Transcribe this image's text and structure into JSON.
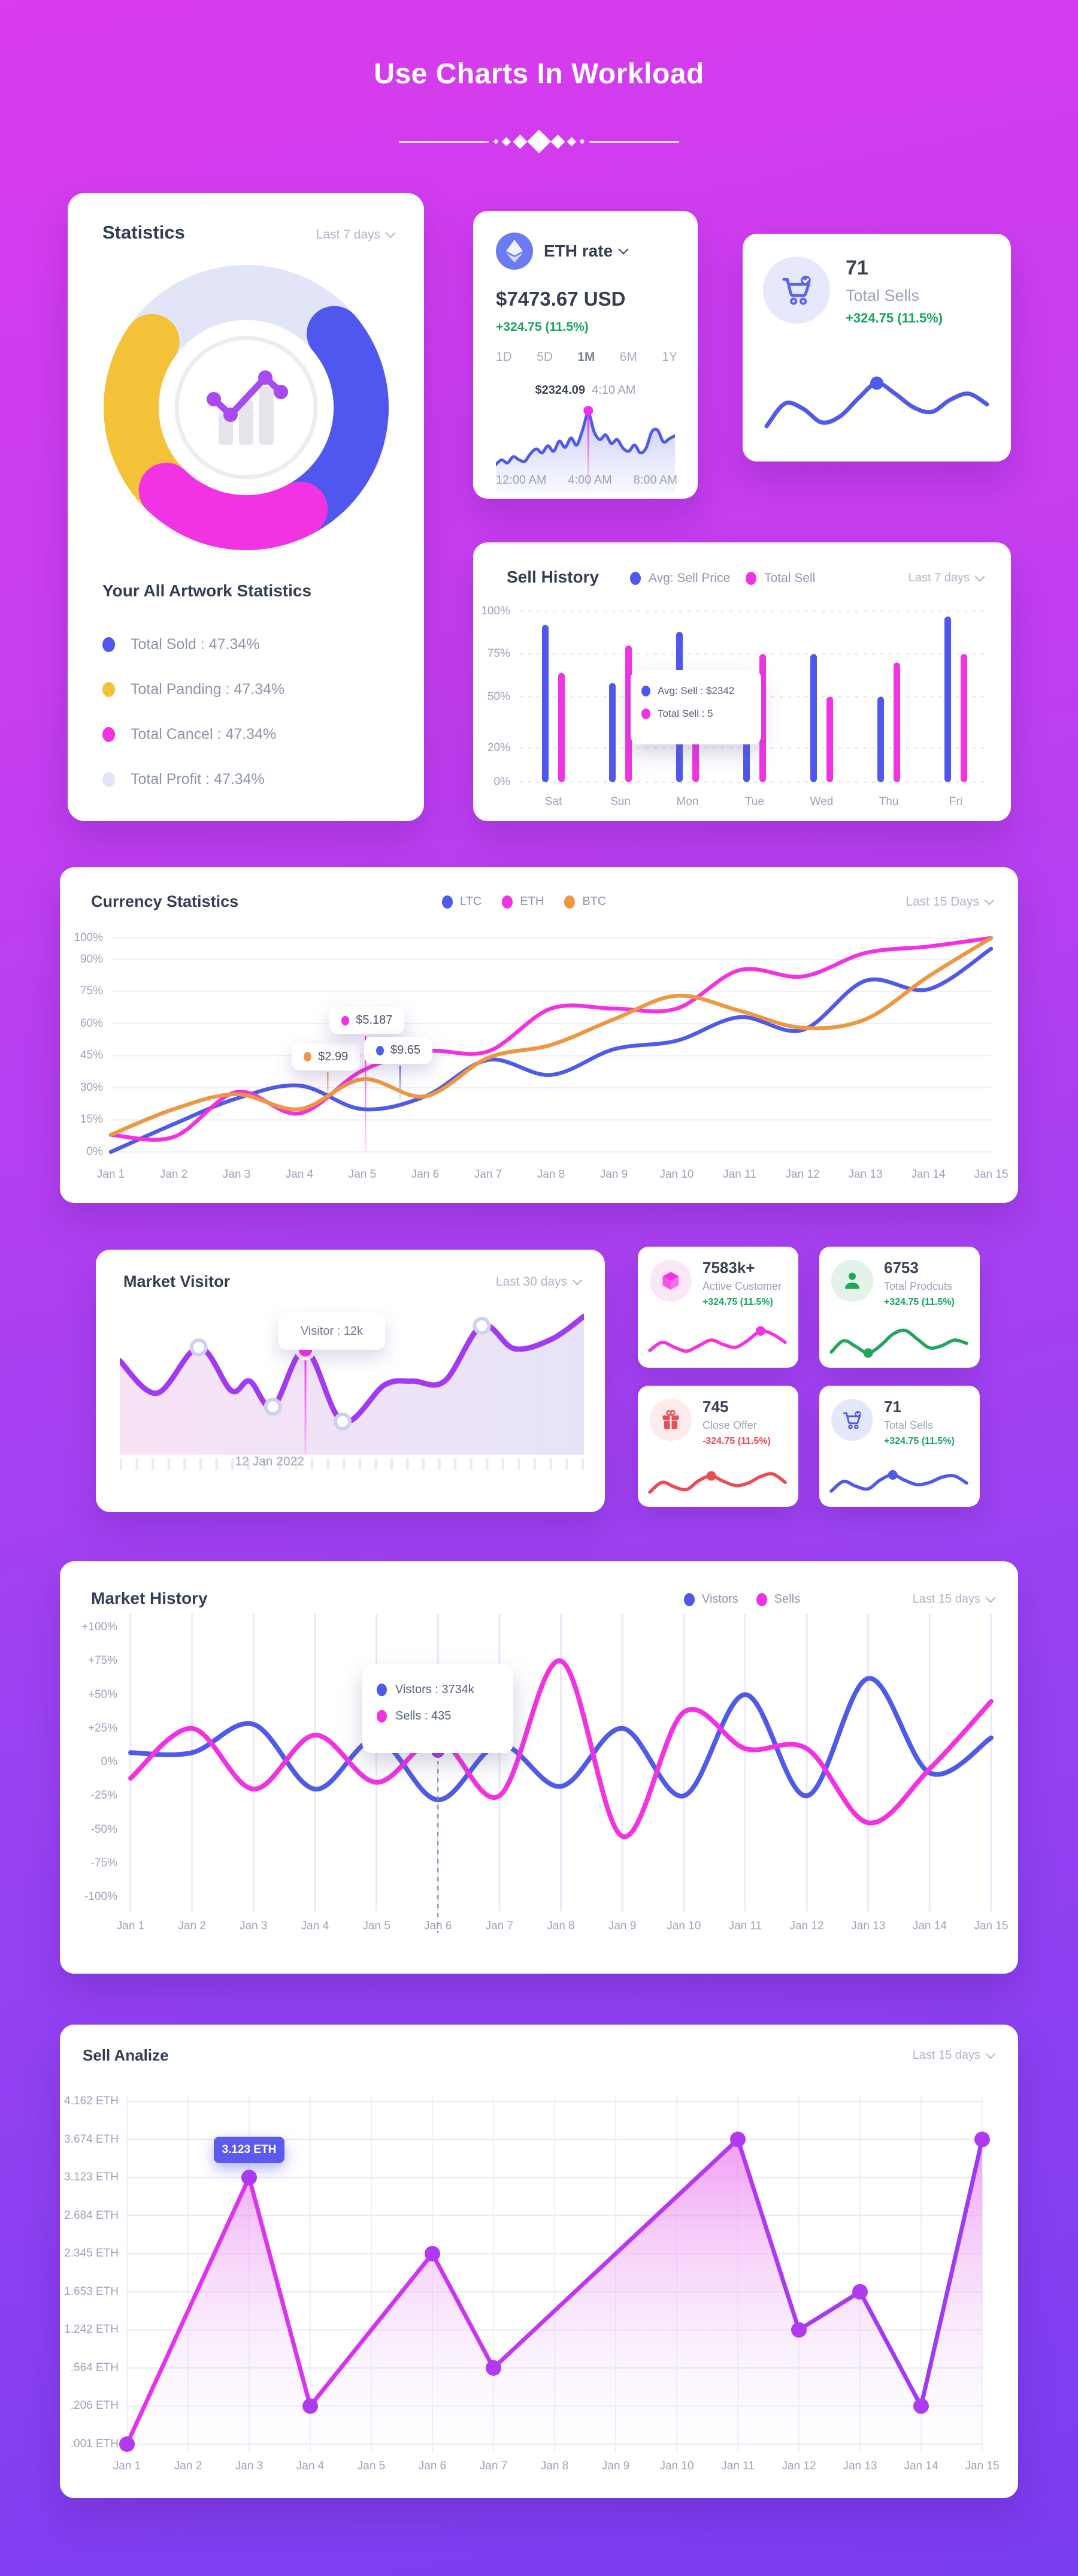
{
  "page": {
    "title": "Use Charts In Workload"
  },
  "statistics": {
    "title": "Statistics",
    "period": "Last 7 days",
    "heading": "Your All Artwork Statistics",
    "donut_segments": [
      {
        "name": "Total Profit",
        "color": "#e2e4f8",
        "start": -62,
        "end": 48
      },
      {
        "name": "Total Sold",
        "color": "#5057ee",
        "start": 50,
        "end": 152
      },
      {
        "name": "Total Panding",
        "color": "#f4c238",
        "start": 223,
        "end": 305
      },
      {
        "name": "Total Cancel",
        "color": "#f233e4",
        "start": 152,
        "end": 224
      }
    ],
    "legend": [
      {
        "label": "Total Sold",
        "value": "47.34%",
        "color": "#5057ee"
      },
      {
        "label": "Total Panding",
        "value": "47.34%",
        "color": "#f4c238"
      },
      {
        "label": "Total Cancel",
        "value": "47.34%",
        "color": "#f233e4"
      },
      {
        "label": "Total Profit",
        "value": "47.34%",
        "color": "#e2e4f8"
      }
    ]
  },
  "eth_rate": {
    "label": "ETH rate",
    "price": "$7473.67 USD",
    "change": "+324.75 (11.5%)",
    "tabs": [
      "1D",
      "5D",
      "1M",
      "6M",
      "1Y"
    ],
    "active_tab": "1M",
    "tooltip_price": "$2324.09",
    "tooltip_time": "4:10 AM",
    "x_labels": [
      "12:00 AM",
      "4:00 AM",
      "8:00 AM"
    ],
    "values": [
      30,
      36,
      32,
      40,
      36,
      34,
      44,
      50,
      45,
      54,
      47,
      60,
      52,
      64,
      55,
      74,
      96,
      72,
      62,
      68,
      57,
      62,
      51,
      47,
      55,
      45,
      51,
      72,
      74,
      59,
      63,
      67
    ],
    "peak_index": 16,
    "line_color": "#4f5ae8",
    "dot_color": "#f62ef0"
  },
  "total_sells_card": {
    "value": "71",
    "label": "Total Sells",
    "change": "+324.75 (11.5%)",
    "spark": [
      15,
      45,
      38,
      20,
      28,
      52,
      72,
      58,
      40,
      34,
      50,
      58,
      44
    ],
    "dot_index": 6,
    "color": "#4f5ae8"
  },
  "sell_history": {
    "title": "Sell History",
    "period": "Last 7 days",
    "legend": [
      {
        "label": "Avg: Sell Price",
        "color": "#5057ee"
      },
      {
        "label": "Total Sell",
        "color": "#f233e4"
      }
    ],
    "y_ticks": [
      {
        "label": "100%",
        "value": 100
      },
      {
        "label": "75%",
        "value": 75
      },
      {
        "label": "50%",
        "value": 50
      },
      {
        "label": "20%",
        "value": 20
      },
      {
        "label": "0%",
        "value": 0
      }
    ],
    "categories": [
      "Sat",
      "Sun",
      "Mon",
      "Tue",
      "Wed",
      "Thu",
      "Fri"
    ],
    "series": [
      {
        "name": "Avg: Sell Price",
        "color": "#5057ee",
        "values": [
          92,
          58,
          88,
          38,
          75,
          50,
          97
        ]
      },
      {
        "name": "Total Sell",
        "color": "#f233e4",
        "values": [
          64,
          80,
          53,
          75,
          50,
          70,
          75
        ]
      }
    ],
    "tooltip": [
      {
        "label": "Avg: Sell : $2342",
        "color": "#5057ee"
      },
      {
        "label": "Total Sell : 5",
        "color": "#f233e4"
      }
    ]
  },
  "currency_statistics": {
    "title": "Currency  Statistics",
    "period": "Last 15 Days",
    "legend": [
      {
        "label": "LTC",
        "color": "#4f5ae8"
      },
      {
        "label": "ETH",
        "color": "#f231e2"
      },
      {
        "label": "BTC",
        "color": "#ee9743"
      }
    ],
    "y_ticks": [
      {
        "label": "100%",
        "value": 100
      },
      {
        "label": "90%",
        "value": 90
      },
      {
        "label": "75%",
        "value": 75
      },
      {
        "label": "60%",
        "value": 60
      },
      {
        "label": "45%",
        "value": 45
      },
      {
        "label": "30%",
        "value": 30
      },
      {
        "label": "15%",
        "value": 15
      },
      {
        "label": "0%",
        "value": 0
      }
    ],
    "x_labels": [
      "Jan 1",
      "Jan 2",
      "Jan 3",
      "Jan 4",
      "Jan 5",
      "Jan 6",
      "Jan 7",
      "Jan 8",
      "Jan 9",
      "Jan 10",
      "Jan 11",
      "Jan 12",
      "Jan 13",
      "Jan 14",
      "Jan 15"
    ],
    "series": [
      {
        "name": "LTC",
        "color": "#4f5ae8",
        "values": [
          0,
          13,
          25,
          31,
          20,
          26,
          43,
          36,
          48,
          52,
          63,
          57,
          80,
          76,
          95
        ]
      },
      {
        "name": "ETH",
        "color": "#f231e2",
        "values": [
          8,
          7,
          28,
          18,
          38,
          47,
          47,
          67,
          67,
          67,
          85,
          82,
          93,
          96,
          100
        ]
      },
      {
        "name": "BTC",
        "color": "#ee9743",
        "values": [
          8,
          20,
          27,
          20,
          34,
          26,
          44,
          50,
          62,
          73,
          66,
          58,
          62,
          82,
          100
        ]
      }
    ],
    "tooltips": [
      {
        "label": "$2.99",
        "color": "#ee9743",
        "day": 4.45,
        "value": 44,
        "line_to": 22
      },
      {
        "label": "$5.187",
        "color": "#f231e2",
        "day": 5.05,
        "value": 61,
        "line_to": 0
      },
      {
        "label": "$9.65",
        "color": "#4f5ae8",
        "day": 5.6,
        "value": 47,
        "line_to": 24
      }
    ]
  },
  "market_visitor": {
    "title": "Market Visitor",
    "period": "Last 30 days",
    "tooltip": "Visitor : 12k",
    "date_label": "12 Jan 2022",
    "line_color": "#a03bf2",
    "points": [
      [
        0,
        62
      ],
      [
        8,
        38
      ],
      [
        17,
        72
      ],
      [
        24,
        40
      ],
      [
        28,
        47
      ],
      [
        33,
        28
      ],
      [
        40,
        70
      ],
      [
        48,
        17
      ],
      [
        57,
        44
      ],
      [
        63,
        47
      ],
      [
        70,
        47
      ],
      [
        78,
        88
      ],
      [
        85,
        71
      ],
      [
        93,
        78
      ],
      [
        100,
        95
      ]
    ],
    "hollow_markers": [
      2,
      5,
      7,
      11
    ],
    "dot_index": 6
  },
  "small_cards": [
    {
      "value": "7583k+",
      "label": "Active Customer",
      "change": "+324.75 (11.5%)",
      "change_color": "#17a45f",
      "icon": "cube-icon",
      "accent": "#f233e4",
      "icon_bg": "#fce7f8",
      "spark": [
        20,
        45,
        30,
        18,
        35,
        52,
        38,
        30,
        52,
        80,
        70,
        45
      ],
      "dot_index": 9
    },
    {
      "value": "6753",
      "label": "Total Prodcuts",
      "change": "+324.75 (11.5%)",
      "change_color": "#17a45f",
      "icon": "person-icon",
      "accent": "#22a55c",
      "icon_bg": "#e2f3e8",
      "spark": [
        15,
        50,
        32,
        12,
        35,
        70,
        82,
        55,
        28,
        35,
        52,
        42
      ],
      "dot_index": 3
    },
    {
      "value": "745",
      "label": "Close Offer",
      "change": "-324.75 (11.5%)",
      "change_color": "#ea4d52",
      "icon": "gift-icon",
      "accent": "#ea4d52",
      "icon_bg": "#fdeaea",
      "spark": [
        12,
        42,
        28,
        20,
        48,
        62,
        45,
        32,
        40,
        60,
        68,
        42
      ],
      "dot_index": 5
    },
    {
      "value": "71",
      "label": "Total Sells",
      "change": "+324.75 (11.5%)",
      "change_color": "#17a45f",
      "icon": "cart-icon",
      "accent": "#4f5ae8",
      "icon_bg": "#e5e7fb",
      "spark": [
        15,
        45,
        30,
        22,
        50,
        65,
        48,
        35,
        42,
        58,
        62,
        40
      ],
      "dot_index": 5
    }
  ],
  "market_history": {
    "title": "Market History",
    "period": "Last 15 days",
    "legend": [
      {
        "label": "Vistors",
        "color": "#4f5ae8"
      },
      {
        "label": "Sells",
        "color": "#f231e2"
      }
    ],
    "y_ticks": [
      {
        "label": "+100%",
        "value": 100
      },
      {
        "label": "+75%",
        "value": 75
      },
      {
        "label": "+50%",
        "value": 50
      },
      {
        "label": "+25%",
        "value": 25
      },
      {
        "label": "0%",
        "value": 0
      },
      {
        "label": "-25%",
        "value": -25
      },
      {
        "label": "-50%",
        "value": -50
      },
      {
        "label": "-75%",
        "value": -75
      },
      {
        "label": "-100%",
        "value": -100
      }
    ],
    "x_labels": [
      "Jan 1",
      "Jan 2",
      "Jan 3",
      "Jan 4",
      "Jan 5",
      "Jan 6",
      "Jan 7",
      "Jan 8",
      "Jan 9",
      "Jan 10",
      "Jan 11",
      "Jan 12",
      "Jan 13",
      "Jan 14",
      "Jan 15"
    ],
    "series": [
      {
        "name": "Vistors",
        "color": "#4f5ae8",
        "values": [
          7,
          7,
          28,
          -20,
          17,
          -28,
          13,
          -18,
          25,
          -25,
          50,
          -25,
          62,
          -8,
          18
        ]
      },
      {
        "name": "Sells",
        "color": "#f231e2",
        "values": [
          -12,
          25,
          -20,
          20,
          -15,
          17,
          -25,
          75,
          -55,
          37,
          10,
          10,
          -45,
          -5,
          45
        ]
      }
    ],
    "tooltip": [
      {
        "label": "Vistors : 3734k",
        "color": "#4f5ae8"
      },
      {
        "label": "Sells : 435",
        "color": "#f231e2"
      }
    ],
    "marker": {
      "day": 6,
      "value": 8,
      "color": "#9b36ee"
    }
  },
  "sell_analyze": {
    "title": "Sell Analize",
    "period": "Last 15 days",
    "y_labels": [
      "4.162 ETH",
      "3.674 ETH",
      "3.123 ETH",
      "2.684 ETH",
      "2.345 ETH",
      "1.653 ETH",
      "1.242 ETH",
      ".564 ETH",
      ".206 ETH",
      ".001 ETH"
    ],
    "x_labels": [
      "Jan 1",
      "Jan 2",
      "Jan 3",
      "Jan 4",
      "Jan 5",
      "Jan 6",
      "Jan 7",
      "Jan 8",
      "Jan 9",
      "Jan 10",
      "Jan 11",
      "Jan 12",
      "Jan 13",
      "Jan 14",
      "Jan 15"
    ],
    "points": [
      {
        "day": 1,
        "level": 0
      },
      {
        "day": 3,
        "level": 7
      },
      {
        "day": 4,
        "level": 1
      },
      {
        "day": 6,
        "level": 5
      },
      {
        "day": 7,
        "level": 2
      },
      {
        "day": 11,
        "level": 8
      },
      {
        "day": 12,
        "level": 3
      },
      {
        "day": 13,
        "level": 4
      },
      {
        "day": 14,
        "level": 1
      },
      {
        "day": 15,
        "level": 8
      }
    ],
    "tooltip": {
      "label": "3.123 ETH",
      "point_index": 1
    }
  },
  "chart_data": [
    {
      "type": "pie",
      "title": "Your All Artwork Statistics",
      "labels": [
        "Total Sold",
        "Total Panding",
        "Total Cancel",
        "Total Profit"
      ],
      "values": [
        47.34,
        47.34,
        47.34,
        47.34
      ],
      "legend_position": "bottom"
    },
    {
      "type": "line",
      "title": "ETH rate",
      "x": [
        "12:00 AM",
        "4:00 AM",
        "8:00 AM"
      ],
      "annotation": "$2324.09 4:10 AM"
    },
    {
      "type": "bar",
      "title": "Sell History",
      "categories": [
        "Sat",
        "Sun",
        "Mon",
        "Tue",
        "Wed",
        "Thu",
        "Fri"
      ],
      "series": [
        {
          "name": "Avg: Sell Price",
          "values": [
            92,
            58,
            88,
            38,
            75,
            50,
            97
          ]
        },
        {
          "name": "Total Sell",
          "values": [
            64,
            80,
            53,
            75,
            50,
            70,
            75
          ]
        }
      ],
      "ylim": [
        0,
        100
      ]
    },
    {
      "type": "line",
      "title": "Currency Statistics",
      "categories": [
        "Jan 1",
        "Jan 2",
        "Jan 3",
        "Jan 4",
        "Jan 5",
        "Jan 6",
        "Jan 7",
        "Jan 8",
        "Jan 9",
        "Jan 10",
        "Jan 11",
        "Jan 12",
        "Jan 13",
        "Jan 14",
        "Jan 15"
      ],
      "series": [
        {
          "name": "LTC",
          "values": [
            0,
            13,
            25,
            31,
            20,
            26,
            43,
            36,
            48,
            52,
            63,
            57,
            80,
            76,
            95
          ]
        },
        {
          "name": "ETH",
          "values": [
            8,
            7,
            28,
            18,
            38,
            47,
            47,
            67,
            67,
            67,
            85,
            82,
            93,
            96,
            100
          ]
        },
        {
          "name": "BTC",
          "values": [
            8,
            20,
            27,
            20,
            34,
            26,
            44,
            50,
            62,
            73,
            66,
            58,
            62,
            82,
            100
          ]
        }
      ],
      "ylim": [
        0,
        100
      ],
      "annotations": [
        "$2.99",
        "$5.187",
        "$9.65"
      ]
    },
    {
      "type": "line",
      "title": "Market History",
      "categories": [
        "Jan 1",
        "Jan 2",
        "Jan 3",
        "Jan 4",
        "Jan 5",
        "Jan 6",
        "Jan 7",
        "Jan 8",
        "Jan 9",
        "Jan 10",
        "Jan 11",
        "Jan 12",
        "Jan 13",
        "Jan 14",
        "Jan 15"
      ],
      "series": [
        {
          "name": "Vistors",
          "values": [
            7,
            7,
            28,
            -20,
            17,
            -28,
            13,
            -18,
            25,
            -25,
            50,
            -25,
            62,
            -8,
            18
          ]
        },
        {
          "name": "Sells",
          "values": [
            -12,
            25,
            -20,
            20,
            -15,
            17,
            -25,
            75,
            -55,
            37,
            10,
            10,
            -45,
            -5,
            45
          ]
        }
      ],
      "ylim": [
        -100,
        100
      ],
      "annotations": [
        "Vistors : 3734k",
        "Sells : 435"
      ]
    },
    {
      "type": "area",
      "title": "Sell Analize",
      "x": [
        1,
        3,
        4,
        6,
        7,
        11,
        12,
        13,
        14,
        15
      ],
      "values_eth": [
        0.001,
        3.123,
        0.206,
        2.345,
        0.564,
        3.674,
        1.242,
        1.653,
        0.206,
        3.674
      ],
      "annotation": "3.123 ETH"
    }
  ]
}
